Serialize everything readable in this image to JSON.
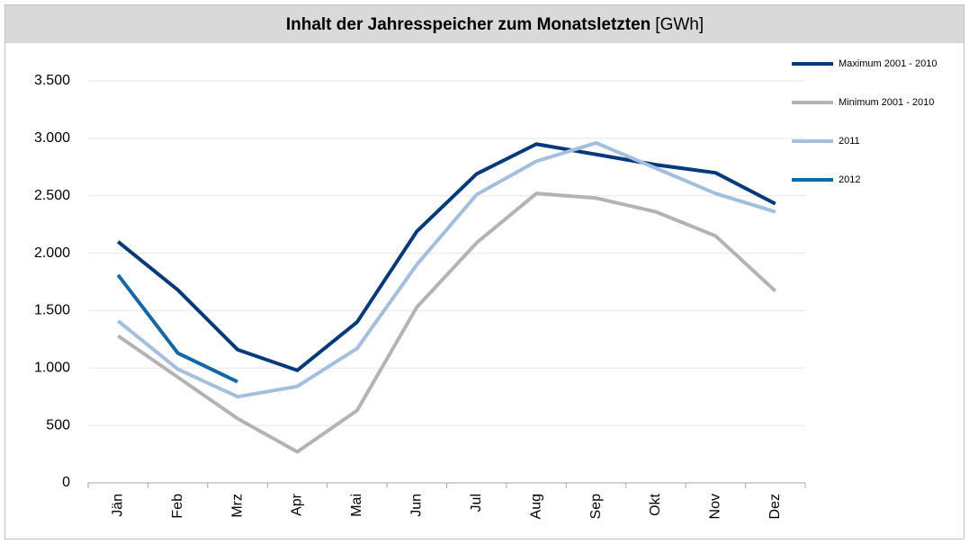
{
  "chart_data": {
    "type": "line",
    "title": "Inhalt der Jahresspeicher zum Monatsletzten",
    "title_unit": "[GWh]",
    "categories": [
      "Jän",
      "Feb",
      "Mrz",
      "Apr",
      "Mai",
      "Jun",
      "Jul",
      "Aug",
      "Sep",
      "Okt",
      "Nov",
      "Dez"
    ],
    "series": [
      {
        "name": "Maximum 2001 - 2010",
        "color": "#003a7d",
        "values": [
          2100,
          1680,
          1160,
          980,
          1400,
          2190,
          2690,
          2950,
          2860,
          2770,
          2700,
          2430
        ]
      },
      {
        "name": "Minimum 2001 - 2010",
        "color": "#b3b3b3",
        "values": [
          1280,
          920,
          560,
          270,
          630,
          1530,
          2090,
          2520,
          2480,
          2360,
          2150,
          1670
        ]
      },
      {
        "name": "2011",
        "color": "#a3bede",
        "values": [
          1410,
          990,
          750,
          840,
          1170,
          1900,
          2510,
          2800,
          2960,
          2740,
          2520,
          2360
        ]
      },
      {
        "name": "2012",
        "color": "#1068a8",
        "values": [
          1810,
          1130,
          880,
          null,
          null,
          null,
          null,
          null,
          null,
          null,
          null,
          null
        ]
      }
    ],
    "ylim": [
      0,
      3500
    ],
    "yticks": [
      0,
      500,
      {
        "value": 1000,
        "label": "1.000"
      },
      {
        "value": 1500,
        "label": "1.500"
      },
      {
        "value": 2000,
        "label": "2.000"
      },
      {
        "value": 2500,
        "label": "2.500"
      },
      {
        "value": 3000,
        "label": "3.000"
      },
      {
        "value": 3500,
        "label": "3.500"
      }
    ],
    "grid": true,
    "legend": "right"
  }
}
